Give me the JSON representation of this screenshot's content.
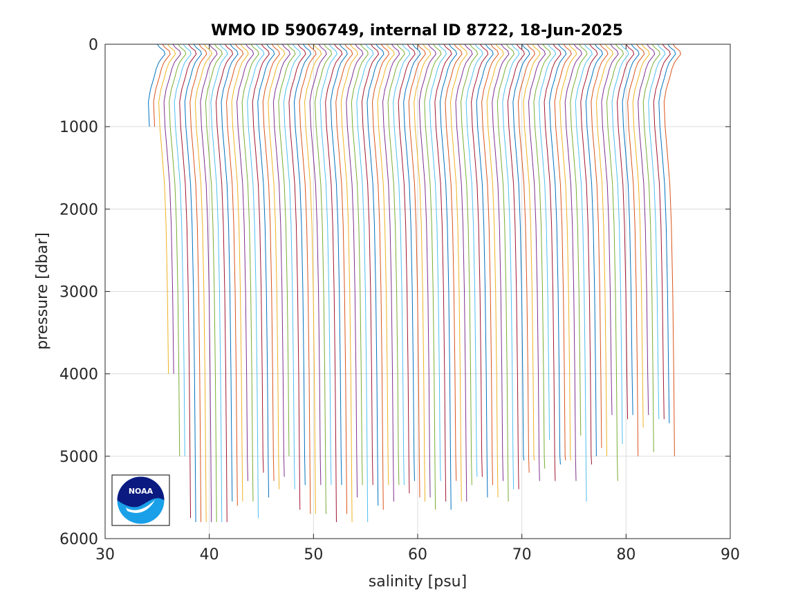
{
  "chart_data": {
    "type": "line",
    "title": "WMO ID 5906749, internal ID 8722, 18-Jun-2025",
    "xlabel": "salinity [psu]",
    "ylabel": "pressure [dbar]",
    "xlim": [
      30,
      90
    ],
    "ylim": [
      0,
      6000
    ],
    "y_reversed": true,
    "grid": true,
    "x_ticks": [
      "30",
      "40",
      "50",
      "60",
      "70",
      "80",
      "90"
    ],
    "y_ticks": [
      "0",
      "1000",
      "2000",
      "3000",
      "4000",
      "5000",
      "6000"
    ],
    "profile_offset_psu": 0.5,
    "base_salinity_psu": 34.7,
    "profile_colors": [
      "#0072BD",
      "#D95319",
      "#EDB120",
      "#7E2F8E",
      "#77AC30",
      "#4DBEEE",
      "#A2142F"
    ],
    "profile_count": 100,
    "max_depths_dbar": [
      1000,
      1000,
      4000,
      4000,
      5000,
      5000,
      5750,
      5800,
      5800,
      5800,
      5800,
      5800,
      5800,
      5800,
      5550,
      5600,
      5550,
      5300,
      5550,
      5750,
      5200,
      5500,
      5300,
      5400,
      5250,
      5000,
      5400,
      5650,
      5350,
      5700,
      5700,
      5350,
      5700,
      5350,
      5800,
      5350,
      5700,
      5800,
      5500,
      5350,
      5800,
      5350,
      5600,
      5650,
      5350,
      5550,
      5350,
      5350,
      5450,
      5300,
      5500,
      5550,
      5500,
      5650,
      5300,
      5550,
      5650,
      5300,
      5550,
      5550,
      5350,
      5250,
      5250,
      5500,
      5350,
      5500,
      5300,
      5550,
      5400,
      5400,
      5050,
      5200,
      5050,
      5300,
      5150,
      4800,
      5300,
      5100,
      5050,
      5050,
      5300,
      4750,
      5550,
      5100,
      5000,
      4900,
      5000,
      4500,
      5300,
      4850,
      4550,
      4500,
      5000,
      4650,
      4500,
      4950,
      4550,
      4550,
      4600,
      5000
    ]
  }
}
